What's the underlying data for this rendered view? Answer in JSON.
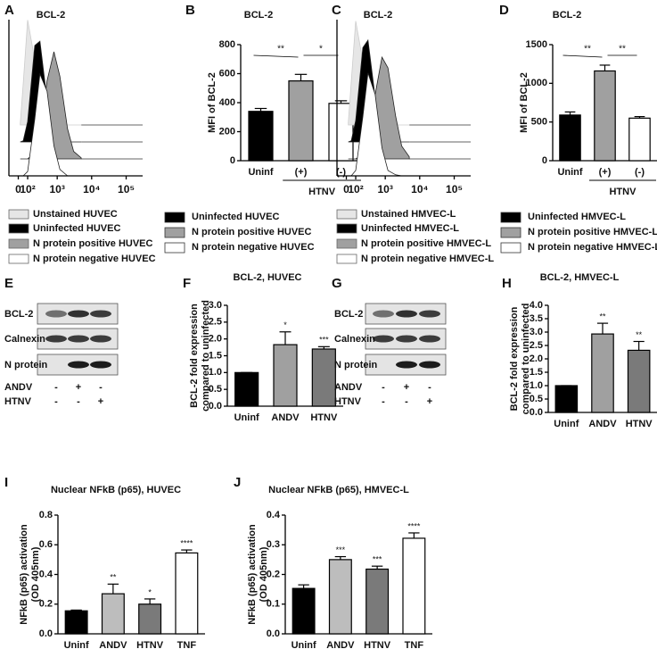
{
  "chart_data": [
    {
      "type": "density",
      "label": "A",
      "title": "BCL-2",
      "xscale": "biexponential",
      "xlim": [
        -100,
        300000
      ],
      "ylim": [
        0,
        100
      ],
      "xticks": [
        0,
        {
          "value": 100,
          "label": "10²"
        },
        {
          "value": 1000,
          "label": "10³"
        },
        {
          "value": 10000,
          "label": "10⁴"
        },
        {
          "value": 100000,
          "label": "10⁵"
        }
      ],
      "x": [
        20,
        50,
        100,
        200,
        300,
        500,
        800,
        1200,
        2000,
        3000,
        5000
      ],
      "series": [
        {
          "name": "Unstained HUVEC",
          "color": "#e6e6e6",
          "values": [
            1,
            38,
            98,
            61,
            23,
            3,
            0,
            0,
            0,
            0,
            0
          ]
        },
        {
          "name": "Uninfected HUVEC",
          "color": "#000000",
          "values": [
            0,
            1,
            19,
            90,
            94,
            39,
            8,
            1,
            0,
            0,
            0
          ]
        },
        {
          "name": "N protein positive HUVEC",
          "color": "#a0a0a0",
          "values": [
            0,
            0,
            0,
            6,
            24,
            73,
            100,
            77,
            28,
            7,
            1
          ]
        },
        {
          "name": "N protein negative HUVEC",
          "color": "#ffffff",
          "values": [
            0,
            0,
            4,
            53,
            95,
            79,
            28,
            6,
            0,
            0,
            0
          ]
        }
      ]
    },
    {
      "type": "bar",
      "label": "B",
      "title": "BCL-2",
      "ylabel": "MFI of BCL-2",
      "categories": [
        "Uninf",
        "(+)",
        "(-)"
      ],
      "values": [
        340,
        550,
        395
      ],
      "errors": [
        20,
        45,
        18
      ],
      "colors": [
        "#000000",
        "#a0a0a0",
        "#ffffff"
      ],
      "legend": [
        "Uninfected HUVEC",
        "N protein positive HUVEC",
        "N protein negative HUVEC"
      ],
      "group": {
        "label": "HTNV",
        "categories": [
          "(+)",
          "(-)"
        ]
      },
      "brackets": [
        {
          "label": "**",
          "between": [
            "Uninf",
            "(+)"
          ]
        },
        {
          "label": "*",
          "between": [
            "(+)",
            "(-)"
          ]
        }
      ],
      "ylim": [
        0,
        800
      ],
      "yticks": [
        0,
        200,
        400,
        600,
        800
      ]
    },
    {
      "type": "density",
      "label": "C",
      "title": "BCL-2",
      "xscale": "biexponential",
      "xlim": [
        -100,
        300000
      ],
      "ylim": [
        0,
        100
      ],
      "xticks": [
        0,
        {
          "value": 100,
          "label": "10²"
        },
        {
          "value": 1000,
          "label": "10³"
        },
        {
          "value": 10000,
          "label": "10⁴"
        },
        {
          "value": 100000,
          "label": "10⁵"
        }
      ],
      "x": [
        20,
        50,
        100,
        200,
        300,
        500,
        800,
        1200,
        2000,
        3000,
        5000
      ],
      "series": [
        {
          "name": "Unstained HMVEC-L",
          "color": "#e6e6e6",
          "values": [
            2,
            40,
            97,
            60,
            22,
            4,
            0,
            0,
            0,
            0,
            0
          ]
        },
        {
          "name": "Uninfected HMVEC-L",
          "color": "#000000",
          "values": [
            0,
            1,
            20,
            88,
            95,
            42,
            10,
            2,
            0,
            0,
            0
          ]
        },
        {
          "name": "N protein positive HMVEC-L",
          "color": "#a0a0a0",
          "values": [
            0,
            0,
            0,
            4,
            18,
            60,
            95,
            85,
            40,
            12,
            2
          ]
        },
        {
          "name": "N protein negative HMVEC-L",
          "color": "#ffffff",
          "values": [
            0,
            0,
            5,
            55,
            96,
            76,
            26,
            5,
            1,
            0,
            0
          ]
        }
      ]
    },
    {
      "type": "bar",
      "label": "D",
      "title": "BCL-2",
      "ylabel": "MFI of BCL-2",
      "categories": [
        "Uninf",
        "(+)",
        "(-)"
      ],
      "values": [
        590,
        1160,
        550
      ],
      "errors": [
        40,
        75,
        20
      ],
      "colors": [
        "#000000",
        "#a0a0a0",
        "#ffffff"
      ],
      "legend": [
        "Uninfected HMVEC-L",
        "N protein positive HMVEC-L",
        "N protein negative HMVEC-L"
      ],
      "group": {
        "label": "HTNV",
        "categories": [
          "(+)",
          "(-)"
        ]
      },
      "brackets": [
        {
          "label": "**",
          "between": [
            "Uninf",
            "(+)"
          ]
        },
        {
          "label": "**",
          "between": [
            "(+)",
            "(-)"
          ]
        }
      ],
      "ylim": [
        0,
        1500
      ],
      "yticks": [
        0,
        500,
        1000,
        1500
      ]
    },
    {
      "type": "bar",
      "label": "F",
      "title": "BCL-2, HUVEC",
      "ylabel": [
        "BCL-2 fold expression",
        "compared to uninfected"
      ],
      "categories": [
        "Uninf",
        "ANDV",
        "HTNV"
      ],
      "values": [
        1.0,
        1.83,
        1.7
      ],
      "errors": [
        0,
        0.38,
        0.07
      ],
      "colors": [
        "#000000",
        "#a0a0a0",
        "#7a7a7a"
      ],
      "annotations": [
        null,
        "*",
        "***"
      ],
      "ylim": [
        0,
        3
      ],
      "yticks": [
        {
          "value": 0,
          "label": "0.0"
        },
        0.5,
        {
          "value": 1,
          "label": "1.0"
        },
        1.5,
        {
          "value": 2,
          "label": "2.0"
        },
        2.5,
        {
          "value": 3,
          "label": "3.0"
        }
      ]
    },
    {
      "type": "bar",
      "label": "H",
      "title": "BCL-2, HMVEC-L",
      "ylabel": [
        "BCL-2 fold expression",
        "compared to uninfected"
      ],
      "categories": [
        "Uninf",
        "ANDV",
        "HTNV"
      ],
      "values": [
        1.0,
        2.93,
        2.32
      ],
      "errors": [
        0,
        0.4,
        0.33
      ],
      "colors": [
        "#000000",
        "#a0a0a0",
        "#7a7a7a"
      ],
      "annotations": [
        null,
        "**",
        "**"
      ],
      "ylim": [
        0,
        4
      ],
      "yticks": [
        {
          "value": 0,
          "label": "0.0"
        },
        0.5,
        {
          "value": 1,
          "label": "1.0"
        },
        1.5,
        {
          "value": 2,
          "label": "2.0"
        },
        2.5,
        {
          "value": 3,
          "label": "3.0"
        },
        3.5,
        {
          "value": 4,
          "label": "4.0"
        }
      ]
    },
    {
      "type": "bar",
      "label": "I",
      "title": "Nuclear NFkB (p65), HUVEC",
      "ylabel": [
        "NFkB (p65) activation",
        "(OD 405nm)"
      ],
      "categories": [
        "Uninf",
        "ANDV",
        "HTNV",
        "TNF"
      ],
      "values": [
        0.155,
        0.27,
        0.2,
        0.545
      ],
      "errors": [
        0.005,
        0.065,
        0.035,
        0.02
      ],
      "colors": [
        "#000000",
        "#bdbdbd",
        "#7a7a7a",
        "#ffffff"
      ],
      "annotations": [
        null,
        "**",
        "*",
        "****"
      ],
      "ylim": [
        0,
        0.8
      ],
      "yticks": [
        {
          "value": 0,
          "label": "0.0"
        },
        0.2,
        0.4,
        0.6,
        0.8
      ]
    },
    {
      "type": "bar",
      "label": "J",
      "title": "Nuclear NFkB (p65), HMVEC-L",
      "ylabel": [
        "NFkB (p65) activation",
        "(OD 405nm)"
      ],
      "categories": [
        "Uninf",
        "ANDV",
        "HTNV",
        "TNF"
      ],
      "values": [
        0.153,
        0.25,
        0.218,
        0.322
      ],
      "errors": [
        0.012,
        0.01,
        0.01,
        0.018
      ],
      "colors": [
        "#000000",
        "#bdbdbd",
        "#7a7a7a",
        "#ffffff"
      ],
      "annotations": [
        null,
        "***",
        "***",
        "****"
      ],
      "ylim": [
        0,
        0.4
      ],
      "yticks": [
        {
          "value": 0,
          "label": "0.0"
        },
        0.1,
        0.2,
        0.3,
        0.4
      ]
    }
  ],
  "blots": [
    {
      "label": "E",
      "rows": [
        "BCL-2",
        "Calnexin",
        "N protein"
      ],
      "conditions": [
        {
          "name": "ANDV",
          "signs": [
            "-",
            "+",
            "-"
          ]
        },
        {
          "name": "HTNV",
          "signs": [
            "-",
            "-",
            "+"
          ]
        }
      ]
    },
    {
      "label": "G",
      "rows": [
        "BCL-2",
        "Calnexin",
        "N protein"
      ],
      "conditions": [
        {
          "name": "ANDV",
          "signs": [
            "-",
            "+",
            "-"
          ]
        },
        {
          "name": "HTNV",
          "signs": [
            "-",
            "-",
            "+"
          ]
        }
      ]
    }
  ]
}
